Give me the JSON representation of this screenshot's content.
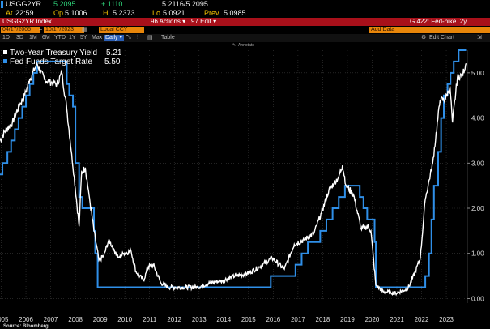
{
  "header": {
    "ticker": "USGG2YR",
    "last": "5.2095",
    "change": "+.1110",
    "bid_ask": "5.2116/5.2095",
    "at_label": "At",
    "time": "22:59",
    "op_label": "Op",
    "open": "5.1006",
    "hi_label": "Hi",
    "high": "5.2373",
    "lo_label": "Lo",
    "low": "5.0921",
    "prev_label": "Prev",
    "prev": "5.0985"
  },
  "titlebar": {
    "security": "USGG2YR Index",
    "actions": "96 Actions ▾",
    "edit": "97 Edit ▾",
    "page": "G 422: Fed-hike..2y"
  },
  "controls": {
    "start_date": "04/17/2005",
    "end_date": "10/17/2023",
    "currency": "Local CCY",
    "add_data": "Add Data"
  },
  "tabs": {
    "periods": [
      "1D",
      "3D",
      "1M",
      "6M",
      "YTD",
      "1Y",
      "5Y",
      "Max"
    ],
    "frequency": "Daily ▾",
    "table": "Table",
    "edit_chart": "Edit Chart"
  },
  "annotate": "Annotate",
  "source": "Source: Bloomberg",
  "colors": {
    "treasury": "#ffffff",
    "fed": "#2f8fe8",
    "background": "#000000",
    "titlebar": "#a8101a"
  },
  "chart_data": {
    "type": "line",
    "title": "",
    "xlabel": "",
    "ylabel": "",
    "x_ticks": [
      "2005",
      "2006",
      "2007",
      "2008",
      "2009",
      "2010",
      "2011",
      "2012",
      "2013",
      "2014",
      "2015",
      "2016",
      "2017",
      "2018",
      "2019",
      "2020",
      "2021",
      "2022",
      "2023"
    ],
    "y_ticks": [
      "0.00",
      "1.00",
      "2.00",
      "3.00",
      "4.00",
      "5.00"
    ],
    "xlim": [
      2005.0,
      2023.9
    ],
    "ylim": [
      -0.1,
      5.5
    ],
    "legend_position": "top-left",
    "series": [
      {
        "name": "Two-Year Treasury Yield",
        "last_value": "5.21",
        "color": "#ffffff",
        "points": [
          [
            2005.0,
            3.5
          ],
          [
            2005.2,
            3.7
          ],
          [
            2005.5,
            3.9
          ],
          [
            2005.8,
            4.3
          ],
          [
            2006.0,
            4.5
          ],
          [
            2006.2,
            4.85
          ],
          [
            2006.5,
            5.2
          ],
          [
            2006.8,
            4.85
          ],
          [
            2007.0,
            4.8
          ],
          [
            2007.3,
            4.75
          ],
          [
            2007.5,
            5.0
          ],
          [
            2007.7,
            4.2
          ],
          [
            2007.9,
            3.2
          ],
          [
            2008.0,
            2.7
          ],
          [
            2008.2,
            1.6
          ],
          [
            2008.3,
            2.8
          ],
          [
            2008.45,
            2.9
          ],
          [
            2008.6,
            2.3
          ],
          [
            2008.8,
            1.5
          ],
          [
            2009.0,
            0.85
          ],
          [
            2009.2,
            0.95
          ],
          [
            2009.4,
            1.3
          ],
          [
            2009.6,
            1.1
          ],
          [
            2009.8,
            0.9
          ],
          [
            2010.0,
            1.0
          ],
          [
            2010.3,
            1.05
          ],
          [
            2010.5,
            0.6
          ],
          [
            2010.8,
            0.4
          ],
          [
            2011.0,
            0.7
          ],
          [
            2011.2,
            0.75
          ],
          [
            2011.5,
            0.35
          ],
          [
            2011.8,
            0.25
          ],
          [
            2012.0,
            0.25
          ],
          [
            2012.5,
            0.25
          ],
          [
            2013.0,
            0.25
          ],
          [
            2013.5,
            0.35
          ],
          [
            2014.0,
            0.4
          ],
          [
            2014.5,
            0.5
          ],
          [
            2015.0,
            0.55
          ],
          [
            2015.5,
            0.7
          ],
          [
            2016.0,
            0.9
          ],
          [
            2016.5,
            0.65
          ],
          [
            2016.9,
            1.2
          ],
          [
            2017.3,
            1.3
          ],
          [
            2017.7,
            1.45
          ],
          [
            2018.0,
            1.9
          ],
          [
            2018.3,
            2.4
          ],
          [
            2018.7,
            2.7
          ],
          [
            2018.85,
            2.95
          ],
          [
            2019.0,
            2.5
          ],
          [
            2019.3,
            2.3
          ],
          [
            2019.6,
            1.55
          ],
          [
            2019.9,
            1.6
          ],
          [
            2020.0,
            1.5
          ],
          [
            2020.2,
            0.3
          ],
          [
            2020.5,
            0.15
          ],
          [
            2020.8,
            0.14
          ],
          [
            2021.0,
            0.12
          ],
          [
            2021.5,
            0.22
          ],
          [
            2021.8,
            0.6
          ],
          [
            2022.0,
            0.9
          ],
          [
            2022.2,
            2.2
          ],
          [
            2022.5,
            3.0
          ],
          [
            2022.8,
            4.4
          ],
          [
            2023.0,
            4.4
          ],
          [
            2023.2,
            4.7
          ],
          [
            2023.3,
            3.9
          ],
          [
            2023.5,
            4.9
          ],
          [
            2023.7,
            4.95
          ],
          [
            2023.85,
            5.21
          ]
        ]
      },
      {
        "name": "Fed Funds Target Rate",
        "last_value": "5.50",
        "color": "#2f8fe8",
        "points": [
          [
            2005.0,
            2.75
          ],
          [
            2005.1,
            2.75
          ],
          [
            2005.1,
            3.0
          ],
          [
            2005.3,
            3.0
          ],
          [
            2005.3,
            3.25
          ],
          [
            2005.45,
            3.25
          ],
          [
            2005.45,
            3.5
          ],
          [
            2005.6,
            3.5
          ],
          [
            2005.6,
            3.75
          ],
          [
            2005.75,
            3.75
          ],
          [
            2005.75,
            4.0
          ],
          [
            2005.9,
            4.0
          ],
          [
            2005.9,
            4.25
          ],
          [
            2006.05,
            4.25
          ],
          [
            2006.05,
            4.5
          ],
          [
            2006.2,
            4.5
          ],
          [
            2006.2,
            4.75
          ],
          [
            2006.35,
            4.75
          ],
          [
            2006.35,
            5.0
          ],
          [
            2006.5,
            5.0
          ],
          [
            2006.5,
            5.25
          ],
          [
            2007.7,
            5.25
          ],
          [
            2007.7,
            4.75
          ],
          [
            2007.8,
            4.75
          ],
          [
            2007.8,
            4.5
          ],
          [
            2007.95,
            4.5
          ],
          [
            2007.95,
            4.25
          ],
          [
            2008.05,
            4.25
          ],
          [
            2008.05,
            3.0
          ],
          [
            2008.2,
            3.0
          ],
          [
            2008.2,
            2.25
          ],
          [
            2008.33,
            2.25
          ],
          [
            2008.33,
            2.0
          ],
          [
            2008.8,
            2.0
          ],
          [
            2008.8,
            1.5
          ],
          [
            2008.85,
            1.5
          ],
          [
            2008.85,
            1.0
          ],
          [
            2008.95,
            1.0
          ],
          [
            2008.95,
            0.25
          ],
          [
            2015.95,
            0.25
          ],
          [
            2015.95,
            0.5
          ],
          [
            2016.95,
            0.5
          ],
          [
            2016.95,
            0.75
          ],
          [
            2017.2,
            0.75
          ],
          [
            2017.2,
            1.0
          ],
          [
            2017.45,
            1.0
          ],
          [
            2017.45,
            1.25
          ],
          [
            2017.95,
            1.25
          ],
          [
            2017.95,
            1.5
          ],
          [
            2018.2,
            1.5
          ],
          [
            2018.2,
            1.75
          ],
          [
            2018.45,
            1.75
          ],
          [
            2018.45,
            2.0
          ],
          [
            2018.7,
            2.0
          ],
          [
            2018.7,
            2.25
          ],
          [
            2018.95,
            2.25
          ],
          [
            2018.95,
            2.5
          ],
          [
            2019.55,
            2.5
          ],
          [
            2019.55,
            2.25
          ],
          [
            2019.7,
            2.25
          ],
          [
            2019.7,
            2.0
          ],
          [
            2019.85,
            2.0
          ],
          [
            2019.85,
            1.75
          ],
          [
            2020.15,
            1.75
          ],
          [
            2020.15,
            1.25
          ],
          [
            2020.2,
            1.25
          ],
          [
            2020.2,
            0.25
          ],
          [
            2022.2,
            0.25
          ],
          [
            2022.2,
            0.5
          ],
          [
            2022.35,
            0.5
          ],
          [
            2022.35,
            1.0
          ],
          [
            2022.45,
            1.0
          ],
          [
            2022.45,
            1.75
          ],
          [
            2022.55,
            1.75
          ],
          [
            2022.55,
            2.5
          ],
          [
            2022.72,
            2.5
          ],
          [
            2022.72,
            3.25
          ],
          [
            2022.84,
            3.25
          ],
          [
            2022.84,
            4.0
          ],
          [
            2022.95,
            4.0
          ],
          [
            2022.95,
            4.5
          ],
          [
            2023.1,
            4.5
          ],
          [
            2023.1,
            4.75
          ],
          [
            2023.22,
            4.75
          ],
          [
            2023.22,
            5.0
          ],
          [
            2023.35,
            5.0
          ],
          [
            2023.35,
            5.25
          ],
          [
            2023.55,
            5.25
          ],
          [
            2023.55,
            5.5
          ],
          [
            2023.85,
            5.5
          ]
        ]
      }
    ]
  }
}
